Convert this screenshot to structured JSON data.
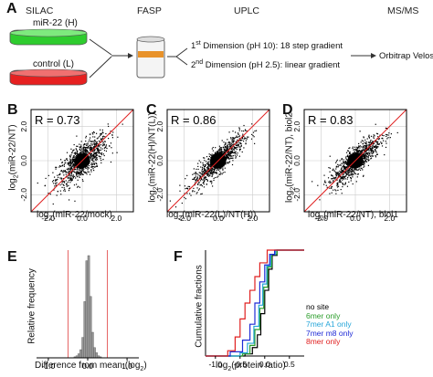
{
  "panelA": {
    "letter": "A",
    "headers": {
      "silac": "SILAC",
      "fasp": "FASP",
      "uplc": "UPLC",
      "msms": "MS/MS"
    },
    "dish_top_label": "miR-22 (H)",
    "dish_bottom_label": "control (L)",
    "dim1_sup": "st",
    "dim1_num": "1",
    "dim1_text": " Dimension (pH 10): 18 step gradient",
    "dim2_sup": "nd",
    "dim2_num": "2",
    "dim2_text": " Dimension (pH 2.5): linear gradient",
    "instrument": "Orbitrap Velos",
    "colors": {
      "green": "#2ecc2e",
      "red": "#e62020",
      "tube_band": "#e8922a"
    }
  },
  "panelB": {
    "letter": "B",
    "r_value": "R = 0.73",
    "ylabel_pre": "log",
    "ylabel_sub": "2",
    "ylabel_post": "(miR-22/NT)",
    "xlabel_pre": "log",
    "xlabel_sub": "2",
    "xlabel_post": "(miR-22/mock)"
  },
  "panelC": {
    "letter": "C",
    "r_value": "R = 0.86",
    "ylabel_pre": "log",
    "ylabel_sub": "2",
    "ylabel_post": "(miR-22(H)/NT(L))",
    "xlabel_pre": "log",
    "xlabel_sub": "2",
    "xlabel_post": "(miR-22(L)/NT(H))"
  },
  "panelD": {
    "letter": "D",
    "r_value": "R = 0.83",
    "ylabel_pre": "log",
    "ylabel_sub": "2",
    "ylabel_post": "(miR-22/NT), biol2",
    "xlabel_pre": "log",
    "xlabel_sub": "2",
    "xlabel_post": "(miR-22/NT), biol1"
  },
  "scatter_ticks": [
    "-2.0",
    "0.0",
    "2.0"
  ],
  "panelE": {
    "letter": "E",
    "ylabel": "Relative frequency",
    "xlabel_pre": "Difference from mean (log",
    "xlabel_sub": "2",
    "xlabel_post": ")",
    "ticks": [
      "-1.0",
      "0.0",
      "1.0"
    ]
  },
  "panelF": {
    "letter": "F",
    "ylabel": "Cumulative fractions",
    "xlabel_pre": "log",
    "xlabel_sub": "2",
    "xlabel_post": "(protein ratio)",
    "ticks": [
      "-1.0",
      "-0.5",
      "0.0",
      "0.5"
    ],
    "legend": [
      {
        "label": "no site",
        "color": "#000000"
      },
      {
        "label": "6mer only",
        "color": "#2a9d2a"
      },
      {
        "label": "7mer A1 only",
        "color": "#27a6d9"
      },
      {
        "label": "7mer m8 only",
        "color": "#1f2bd6"
      },
      {
        "label": "8mer only",
        "color": "#e02020"
      }
    ]
  },
  "chart_data": [
    {
      "type": "scatter",
      "title": "",
      "xlabel": "log2(miR-22/mock)",
      "ylabel": "log2(miR-22/NT)",
      "xlim": [
        -3,
        3
      ],
      "ylim": [
        -3,
        3
      ],
      "annotation": "R = 0.73",
      "reference_line": "identity (red)",
      "correlation": 0.73
    },
    {
      "type": "scatter",
      "title": "",
      "xlabel": "log2(miR-22(L)/NT(H))",
      "ylabel": "log2(miR-22(H)/NT(L))",
      "xlim": [
        -3,
        3
      ],
      "ylim": [
        -3,
        3
      ],
      "annotation": "R = 0.86",
      "reference_line": "identity (red)",
      "correlation": 0.86
    },
    {
      "type": "scatter",
      "title": "",
      "xlabel": "log2(miR-22/NT), biol1",
      "ylabel": "log2(miR-22/NT), biol2",
      "xlim": [
        -3,
        3
      ],
      "ylim": [
        -3,
        3
      ],
      "annotation": "R = 0.83",
      "reference_line": "identity (red)",
      "correlation": 0.83
    },
    {
      "type": "bar",
      "title": "",
      "xlabel": "Difference from mean (log2)",
      "ylabel": "Relative frequency",
      "xlim": [
        -1.3,
        1.3
      ],
      "bins": [
        -0.35,
        -0.3,
        -0.25,
        -0.2,
        -0.15,
        -0.1,
        -0.05,
        0.0,
        0.05,
        0.1,
        0.15,
        0.2,
        0.25,
        0.3
      ],
      "values": [
        0.01,
        0.02,
        0.04,
        0.08,
        0.2,
        0.55,
        0.95,
        1.0,
        0.6,
        0.25,
        0.1,
        0.05,
        0.02,
        0.01
      ],
      "reference_lines": [
        -0.5,
        0.5
      ]
    },
    {
      "type": "line",
      "title": "",
      "xlabel": "log2(protein ratio)",
      "ylabel": "Cumulative fractions",
      "xlim": [
        -1.2,
        0.8
      ],
      "ylim": [
        0,
        1
      ],
      "series": [
        {
          "name": "no site",
          "x": [
            -1.2,
            -0.4,
            -0.25,
            -0.15,
            -0.08,
            0.0,
            0.08,
            0.15,
            0.25,
            0.8
          ],
          "y": [
            0,
            0.02,
            0.08,
            0.2,
            0.4,
            0.62,
            0.82,
            0.95,
            1.0,
            1.0
          ]
        },
        {
          "name": "6mer only",
          "x": [
            -1.2,
            -0.45,
            -0.3,
            -0.2,
            -0.1,
            -0.02,
            0.06,
            0.14,
            0.25,
            0.8
          ],
          "y": [
            0,
            0.02,
            0.1,
            0.25,
            0.45,
            0.65,
            0.84,
            0.96,
            1.0,
            1.0
          ]
        },
        {
          "name": "7mer A1 only",
          "x": [
            -1.2,
            -0.5,
            -0.35,
            -0.22,
            -0.12,
            -0.04,
            0.04,
            0.12,
            0.22,
            0.8
          ],
          "y": [
            0,
            0.03,
            0.12,
            0.28,
            0.48,
            0.68,
            0.85,
            0.96,
            1.0,
            1.0
          ]
        },
        {
          "name": "7mer m8 only",
          "x": [
            -1.2,
            -0.7,
            -0.45,
            -0.3,
            -0.2,
            -0.1,
            0.0,
            0.1,
            0.2,
            0.8
          ],
          "y": [
            0,
            0.04,
            0.15,
            0.3,
            0.5,
            0.7,
            0.86,
            0.96,
            1.0,
            1.0
          ]
        },
        {
          "name": "8mer only",
          "x": [
            -1.2,
            -0.75,
            -0.6,
            -0.5,
            -0.4,
            -0.3,
            -0.2,
            -0.1,
            0.05,
            0.8
          ],
          "y": [
            0,
            0.05,
            0.18,
            0.35,
            0.5,
            0.62,
            0.75,
            0.88,
            1.0,
            1.0
          ]
        }
      ]
    }
  ]
}
